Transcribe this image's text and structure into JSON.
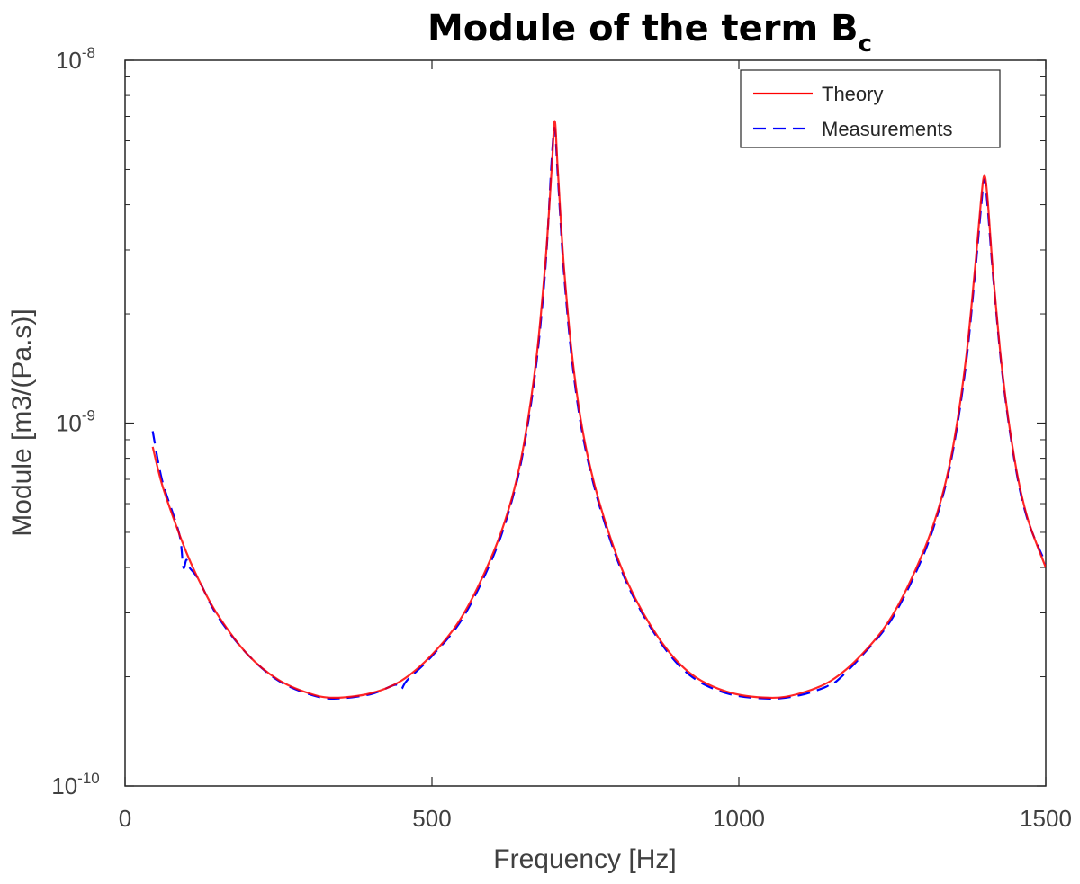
{
  "chart_data": {
    "type": "line",
    "title": "Module of the term B",
    "title_subscript": "c",
    "xlabel": "Frequency [Hz]",
    "ylabel": "Module [m3/(Pa.s)]",
    "xlim": [
      0,
      1500
    ],
    "ylim": [
      1e-10,
      1e-08
    ],
    "yscale": "log",
    "grid": false,
    "legend_position": "top-right",
    "x_ticks": [
      {
        "value": 0,
        "label": "0"
      },
      {
        "value": 500,
        "label": "500"
      },
      {
        "value": 1000,
        "label": "1000"
      },
      {
        "value": 1500,
        "label": "1500"
      }
    ],
    "y_ticks": [
      {
        "value": 1e-10,
        "base": "10",
        "exp": "-10"
      },
      {
        "value": 1e-09,
        "base": "10",
        "exp": "-9"
      },
      {
        "value": 1e-08,
        "base": "10",
        "exp": "-8"
      }
    ],
    "series": [
      {
        "name": "Theory",
        "color": "#ff0000",
        "style": "solid",
        "x": [
          45,
          60,
          80,
          100,
          120,
          150,
          200,
          250,
          300,
          340,
          400,
          450,
          500,
          550,
          600,
          630,
          650,
          670,
          685,
          695,
          700,
          705,
          715,
          730,
          750,
          780,
          820,
          870,
          920,
          980,
          1050,
          1100,
          1150,
          1200,
          1250,
          1300,
          1330,
          1350,
          1370,
          1385,
          1395,
          1400,
          1405,
          1415,
          1430,
          1450,
          1470,
          1500
        ],
        "y": [
          8.6e-10,
          6.8e-10,
          5.4e-10,
          4.4e-10,
          3.7e-10,
          2.98e-10,
          2.3e-10,
          1.96e-10,
          1.8e-10,
          1.75e-10,
          1.8e-10,
          1.95e-10,
          2.3e-10,
          2.95e-10,
          4.4e-10,
          6.2e-10,
          8.8e-10,
          1.5e-09,
          2.8e-09,
          5e-09,
          6.8e-09,
          5e-09,
          2.7e-09,
          1.45e-09,
          8.7e-10,
          5.5e-10,
          3.6e-10,
          2.55e-10,
          2.05e-10,
          1.82e-10,
          1.75e-10,
          1.8e-10,
          1.95e-10,
          2.3e-10,
          2.95e-10,
          4.4e-10,
          6.2e-10,
          8.8e-10,
          1.5e-09,
          2.7e-09,
          4.2e-09,
          4.8e-09,
          4.2e-09,
          2.5e-09,
          1.35e-09,
          7.8e-10,
          5.5e-10,
          4e-10
        ]
      },
      {
        "name": "Measurements",
        "color": "#0000ff",
        "style": "dashed",
        "x": [
          45,
          60,
          80,
          90,
          95,
          100,
          105,
          120,
          150,
          200,
          250,
          300,
          340,
          400,
          440,
          450,
          460,
          500,
          550,
          600,
          630,
          650,
          670,
          685,
          695,
          700,
          705,
          715,
          730,
          750,
          780,
          820,
          870,
          920,
          980,
          1050,
          1100,
          1140,
          1150,
          1160,
          1200,
          1250,
          1300,
          1330,
          1350,
          1370,
          1385,
          1395,
          1400,
          1405,
          1415,
          1430,
          1450,
          1470,
          1500
        ],
        "y": [
          9.5e-10,
          7e-10,
          5.5e-10,
          4.8e-10,
          4e-10,
          4.2e-10,
          4e-10,
          3.7e-10,
          2.95e-10,
          2.3e-10,
          1.95e-10,
          1.79e-10,
          1.74e-10,
          1.79e-10,
          1.9e-10,
          1.85e-10,
          1.96e-10,
          2.28e-10,
          2.9e-10,
          4.3e-10,
          6.1e-10,
          8.6e-10,
          1.45e-09,
          2.7e-09,
          5.3e-09,
          6.5e-09,
          4.8e-09,
          2.6e-09,
          1.4e-09,
          8.5e-10,
          5.4e-10,
          3.55e-10,
          2.52e-10,
          2.02e-10,
          1.8e-10,
          1.74e-10,
          1.78e-10,
          1.87e-10,
          1.92e-10,
          1.95e-10,
          2.28e-10,
          2.9e-10,
          4.3e-10,
          6.1e-10,
          8.6e-10,
          1.45e-09,
          2.6e-09,
          4e-09,
          4.7e-09,
          4e-09,
          2.45e-09,
          1.33e-09,
          7.7e-10,
          5.45e-10,
          4.1e-10
        ]
      }
    ]
  }
}
